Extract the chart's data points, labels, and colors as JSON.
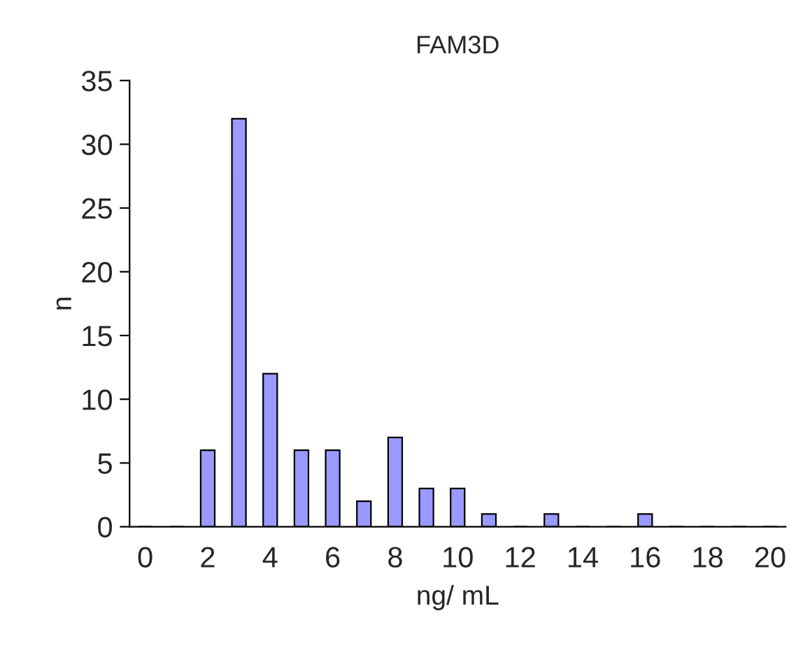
{
  "chart_data": {
    "type": "bar",
    "title": "FAM3D",
    "xlabel": "ng/ mL",
    "ylabel": "n",
    "categories": [
      "0",
      null,
      "2",
      null,
      "4",
      null,
      "6",
      null,
      "8",
      null,
      "10",
      null,
      "12",
      null,
      "14",
      null,
      "16",
      null,
      "18",
      null,
      "20"
    ],
    "values": [
      0,
      0,
      6,
      32,
      12,
      6,
      6,
      2,
      7,
      3,
      3,
      1,
      0,
      1,
      0,
      0,
      1,
      0,
      0,
      0,
      0
    ],
    "color": "#9999ff",
    "ylim": [
      0,
      35
    ],
    "yticks": [
      0,
      5,
      10,
      15,
      20,
      25,
      30,
      35
    ],
    "grid": false,
    "legend": false
  }
}
